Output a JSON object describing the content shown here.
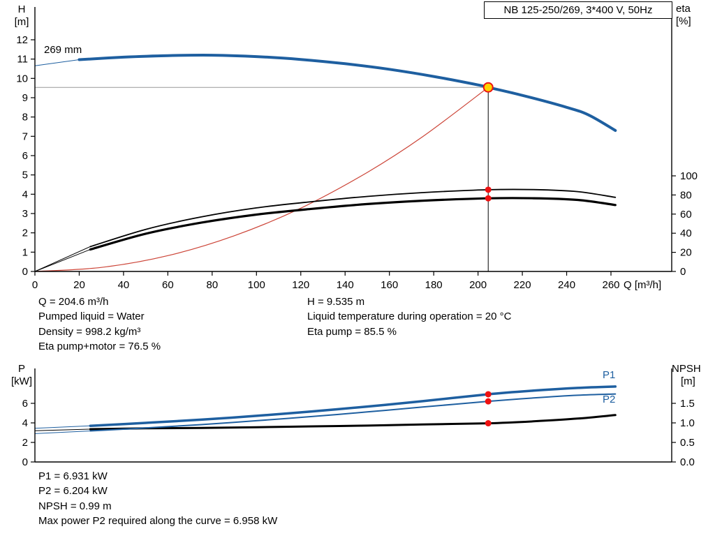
{
  "title_box": "NB 125-250/269, 3*400 V, 50Hz",
  "labels": {
    "h_axis": "H",
    "h_unit": "[m]",
    "eta_axis": "eta",
    "eta_unit": "[%]",
    "q_axis": "Q [m³/h]",
    "curve_label": "269 mm",
    "p_axis": "P",
    "p_unit": "[kW]",
    "npsh_axis": "NPSH",
    "npsh_unit": "[m]",
    "p1": "P1",
    "p2": "P2"
  },
  "info": {
    "top_left": [
      "Q = 204.6 m³/h",
      "Pumped liquid = Water",
      "Density = 998.2 kg/m³",
      "Eta pump+motor = 76.5 %"
    ],
    "top_right": [
      "H = 9.535 m",
      "Liquid temperature during operation = 20 °C",
      "Eta pump = 85.5 %"
    ],
    "bottom": [
      "P1 = 6.931 kW",
      "P2 = 6.204 kW",
      "NPSH = 0.99 m",
      "Max power P2 required along the curve = 6.958 kW"
    ]
  },
  "colors": {
    "curve_blue": "#1e5fa0",
    "curve_black": "#000000",
    "curve_red": "#cc4437",
    "dot_red": "#ee1111",
    "duty_fill": "#ffd300",
    "duty_stroke": "#ee1111",
    "guide_gray": "#999999",
    "axis": "#000000"
  },
  "chart_data": [
    {
      "type": "line",
      "title": "NB 125-250/269, 3*400 V, 50Hz",
      "xlabel": "Q [m³/h]",
      "ylabel_left": "H [m]",
      "ylabel_right": "eta [%]",
      "xlim": [
        0,
        287
      ],
      "ylim_left": [
        0,
        13.7
      ],
      "ylim_right": [
        0,
        100
      ],
      "grid": false,
      "x_ticks": [
        0,
        20,
        40,
        60,
        80,
        100,
        120,
        140,
        160,
        180,
        200,
        220,
        240,
        260
      ],
      "y_ticks_left": [
        0,
        1,
        2,
        3,
        4,
        5,
        6,
        7,
        8,
        9,
        10,
        11,
        12
      ],
      "y_ticks_right": [
        0,
        20,
        40,
        60,
        80,
        100
      ],
      "duty": {
        "Q": 204.6,
        "H": 9.535,
        "eta_pump": 85.5,
        "eta_pump_motor": 76.5
      },
      "series": [
        {
          "name": "system-curve",
          "axis": "H",
          "color_key": "curve_red",
          "width": 1.2,
          "lead_in_q": null,
          "q": [
            0,
            30,
            60,
            90,
            120,
            150,
            175,
            204.6
          ],
          "v": [
            0,
            0.21,
            0.82,
            1.85,
            3.28,
            5.13,
            6.98,
            9.535
          ]
        },
        {
          "name": "eta-pump-curve",
          "axis": "eta",
          "color_key": "curve_black",
          "width": 1.8,
          "lead_in_q": 25,
          "q": [
            0,
            25,
            50,
            75,
            100,
            125,
            150,
            175,
            204.6,
            225,
            245,
            262
          ],
          "v": [
            0,
            26,
            44,
            57,
            66.5,
            73,
            78.5,
            82.5,
            85.5,
            85.6,
            83.5,
            77.5
          ]
        },
        {
          "name": "eta-pump-motor-curve",
          "axis": "eta",
          "color_key": "curve_black",
          "width": 3.2,
          "lead_in_q": 25,
          "q": [
            0,
            25,
            50,
            75,
            100,
            125,
            150,
            175,
            204.6,
            225,
            245,
            262
          ],
          "v": [
            0,
            23,
            39.5,
            51,
            59.5,
            65.5,
            70.5,
            74,
            76.5,
            76.6,
            74.8,
            69.5
          ]
        },
        {
          "name": "head-curve-269mm",
          "axis": "H",
          "color_key": "curve_blue",
          "width": 4,
          "lead_in_q": 20,
          "q": [
            0,
            20,
            40,
            60,
            80,
            100,
            120,
            140,
            160,
            180,
            200,
            204.6,
            220,
            240,
            250,
            262
          ],
          "v": [
            10.65,
            10.97,
            11.1,
            11.18,
            11.2,
            11.13,
            10.98,
            10.76,
            10.47,
            10.1,
            9.66,
            9.535,
            9.12,
            8.5,
            8.1,
            7.3
          ]
        }
      ],
      "markers": [
        {
          "q": 204.6,
          "axis": "eta",
          "v": 76.5,
          "type": "dot"
        },
        {
          "q": 204.6,
          "axis": "eta",
          "v": 85.5,
          "type": "dot"
        },
        {
          "q": 204.6,
          "axis": "H",
          "v": 9.535,
          "type": "duty"
        }
      ]
    },
    {
      "type": "line",
      "xlabel": "",
      "ylabel_left": "P [kW]",
      "ylabel_right": "NPSH [m]",
      "xlim": [
        0,
        287
      ],
      "ylim_left": [
        0,
        9.6
      ],
      "ylim_right": [
        0,
        2.4
      ],
      "grid": false,
      "y_ticks_left": [
        0,
        2,
        4,
        6
      ],
      "y_ticks_right": [
        "0.0",
        "0.5",
        "1.0",
        "1.5"
      ],
      "duty": {
        "Q": 204.6,
        "P1": 6.931,
        "P2": 6.204,
        "NPSH": 0.99
      },
      "series": [
        {
          "name": "npsh-curve",
          "axis": "NPSH",
          "color_key": "curve_black",
          "width": 3,
          "lead_in_q": 25,
          "q": [
            0,
            25,
            50,
            75,
            100,
            125,
            150,
            175,
            204.6,
            225,
            245,
            262
          ],
          "v": [
            0.8,
            0.84,
            0.86,
            0.87,
            0.89,
            0.91,
            0.93,
            0.96,
            0.99,
            1.04,
            1.11,
            1.2
          ]
        },
        {
          "name": "p2-curve",
          "axis": "P",
          "color_key": "curve_blue",
          "width": 2,
          "lead_in_q": 25,
          "q": [
            0,
            25,
            50,
            75,
            100,
            125,
            150,
            175,
            204.6,
            225,
            245,
            262
          ],
          "v": [
            2.9,
            3.18,
            3.48,
            3.82,
            4.22,
            4.65,
            5.12,
            5.62,
            6.204,
            6.55,
            6.83,
            6.958
          ]
        },
        {
          "name": "p1-curve",
          "axis": "P",
          "color_key": "curve_blue",
          "width": 3.5,
          "lead_in_q": 25,
          "q": [
            0,
            25,
            50,
            75,
            100,
            125,
            150,
            175,
            204.6,
            225,
            245,
            262
          ],
          "v": [
            3.45,
            3.7,
            4.0,
            4.33,
            4.72,
            5.17,
            5.67,
            6.22,
            6.931,
            7.3,
            7.58,
            7.72
          ]
        }
      ],
      "markers": [
        {
          "q": 204.6,
          "axis": "NPSH",
          "v": 0.99,
          "type": "dot"
        },
        {
          "q": 204.6,
          "axis": "P",
          "v": 6.204,
          "type": "dot"
        },
        {
          "q": 204.6,
          "axis": "P",
          "v": 6.931,
          "type": "dot"
        }
      ]
    }
  ]
}
